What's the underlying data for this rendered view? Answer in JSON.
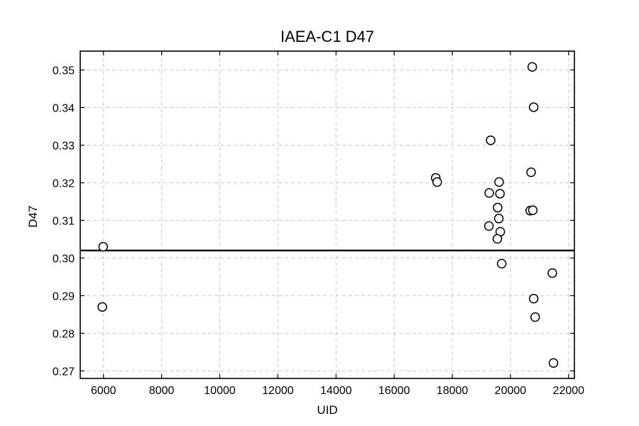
{
  "chart_data": {
    "type": "scatter",
    "title": "IAEA-C1 D47",
    "xlabel": "UID",
    "ylabel": "D47",
    "xlim": [
      5200,
      22200
    ],
    "ylim": [
      0.268,
      0.355
    ],
    "xticks": [
      6000,
      8000,
      10000,
      12000,
      14000,
      16000,
      18000,
      20000,
      22000
    ],
    "yticks": [
      0.27,
      0.28,
      0.29,
      0.3,
      0.31,
      0.32,
      0.33,
      0.34,
      0.35
    ],
    "xtick_labels": [
      "6000",
      "8000",
      "10000",
      "12000",
      "14000",
      "16000",
      "18000",
      "20000",
      "22000"
    ],
    "ytick_labels": [
      "0.27",
      "0.28",
      "0.29",
      "0.30",
      "0.31",
      "0.32",
      "0.33",
      "0.34",
      "0.35"
    ],
    "grid": true,
    "reference_line": {
      "y": 0.302
    },
    "points": [
      {
        "x": 5990,
        "y": 0.303
      },
      {
        "x": 5960,
        "y": 0.287
      },
      {
        "x": 17430,
        "y": 0.3213
      },
      {
        "x": 17480,
        "y": 0.3202
      },
      {
        "x": 19320,
        "y": 0.3313
      },
      {
        "x": 19270,
        "y": 0.3173
      },
      {
        "x": 19260,
        "y": 0.3085
      },
      {
        "x": 19610,
        "y": 0.3202
      },
      {
        "x": 19640,
        "y": 0.3171
      },
      {
        "x": 19560,
        "y": 0.3134
      },
      {
        "x": 19600,
        "y": 0.3105
      },
      {
        "x": 19650,
        "y": 0.307
      },
      {
        "x": 19550,
        "y": 0.3051
      },
      {
        "x": 19700,
        "y": 0.2985
      },
      {
        "x": 20750,
        "y": 0.3508
      },
      {
        "x": 20800,
        "y": 0.3401
      },
      {
        "x": 20710,
        "y": 0.3228
      },
      {
        "x": 20680,
        "y": 0.3126
      },
      {
        "x": 20770,
        "y": 0.3127
      },
      {
        "x": 21440,
        "y": 0.296
      },
      {
        "x": 20800,
        "y": 0.2892
      },
      {
        "x": 20850,
        "y": 0.2843
      },
      {
        "x": 21480,
        "y": 0.2721
      }
    ]
  }
}
